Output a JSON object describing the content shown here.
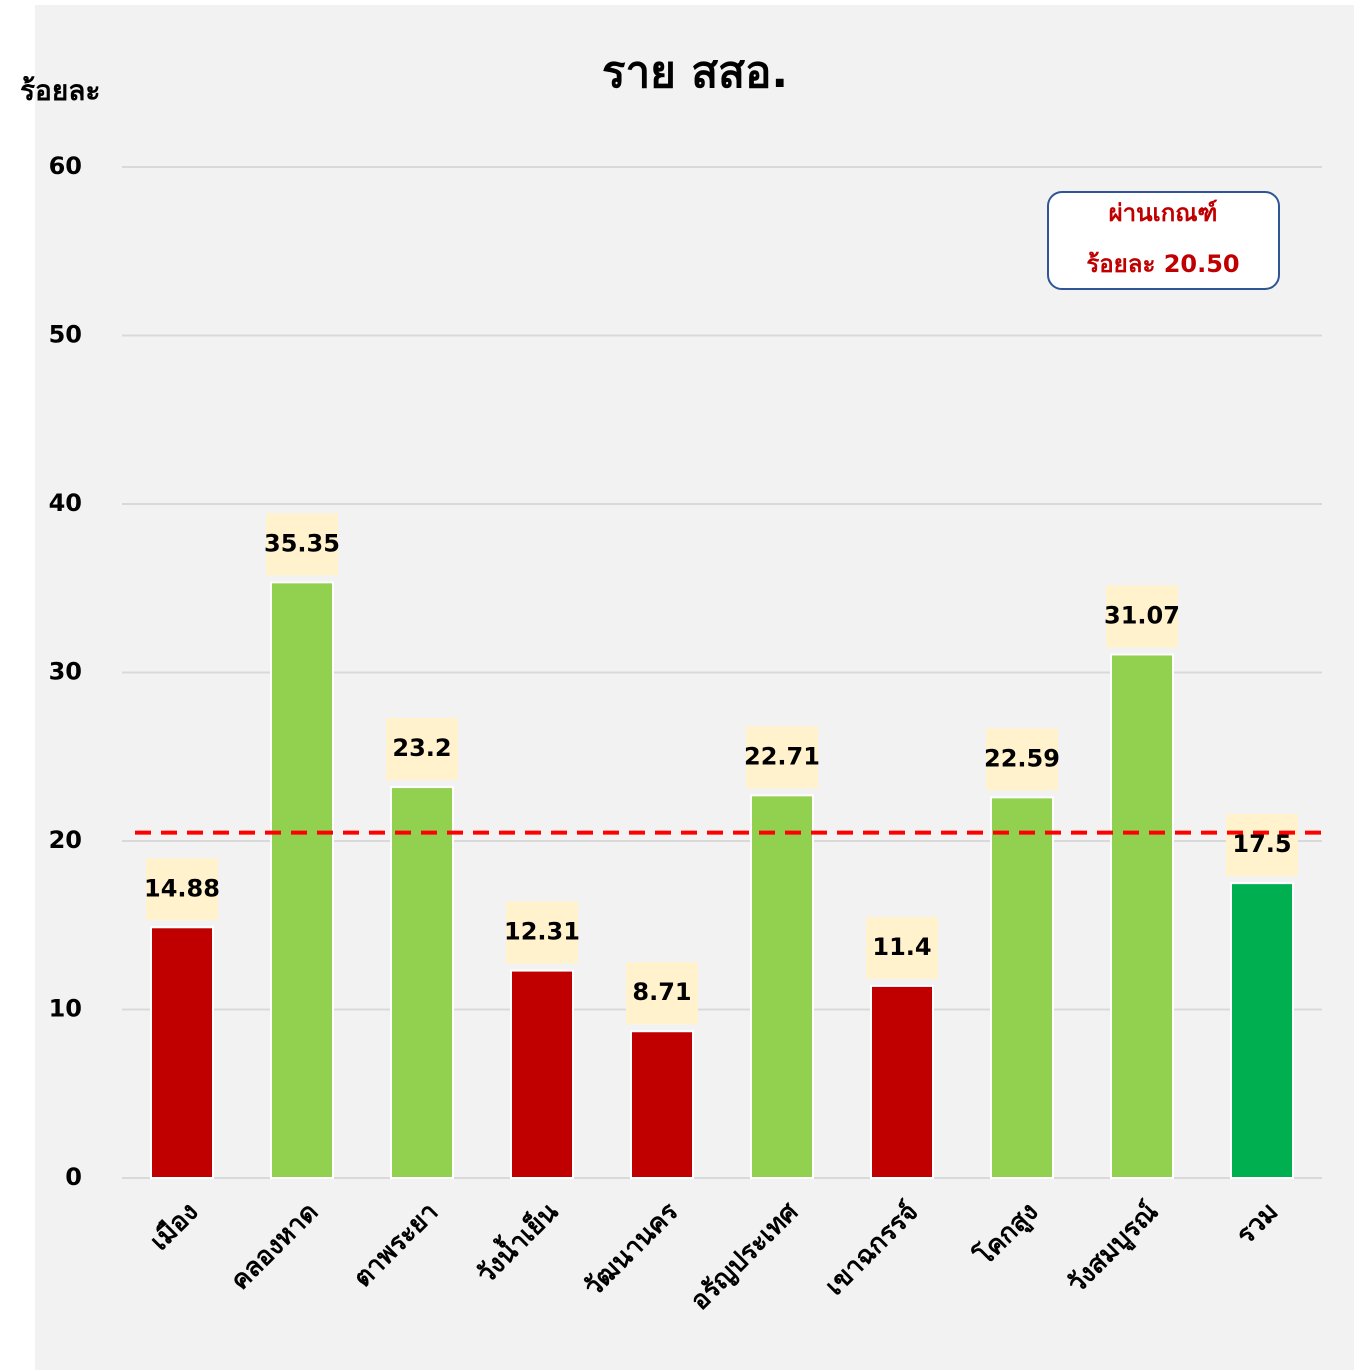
{
  "chart_data": {
    "type": "bar",
    "title": "ราย สสอ.",
    "y_label": "ร้อยละ",
    "categories": [
      "เมือง",
      "คลองหาด",
      "ตาพระยา",
      "วังน้ำเย็น",
      "วัฒนานคร",
      "อรัญประเทศ",
      "เขาฉกรรจ์",
      "โคกสูง",
      "วังสมบูรณ์",
      "รวม"
    ],
    "values": [
      14.88,
      35.35,
      23.2,
      12.31,
      8.71,
      22.71,
      11.4,
      22.59,
      31.07,
      17.5
    ],
    "colors": [
      "#c00000",
      "#92d050",
      "#92d050",
      "#c00000",
      "#c00000",
      "#92d050",
      "#c00000",
      "#92d050",
      "#92d050",
      "#00b050"
    ],
    "ylim": [
      0,
      60
    ],
    "yticks": [
      0,
      10,
      20,
      30,
      40,
      50,
      60
    ],
    "grid": true,
    "threshold": {
      "value": 20.5,
      "color": "#ff0000"
    },
    "annotation": [
      "ผ่านเกณฑ์",
      "ร้อยละ 20.50"
    ]
  }
}
